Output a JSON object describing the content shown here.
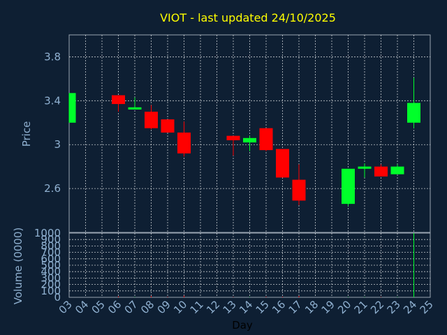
{
  "chart_data": {
    "type": "candlestick",
    "title": "VIOT - last updated 24/10/2025",
    "xlabel": "Day",
    "ylabel": "Price",
    "vol_ylabel": "Volume (0000)",
    "x_ticks": [
      "03",
      "04",
      "05",
      "06",
      "07",
      "08",
      "09",
      "10",
      "11",
      "12",
      "13",
      "14",
      "15",
      "16",
      "17",
      "18",
      "19",
      "20",
      "21",
      "22",
      "23",
      "24",
      "25"
    ],
    "price_ticks": [
      "2.6",
      "3",
      "3.4",
      "3.8"
    ],
    "price_tick_values": [
      2.6,
      3.0,
      3.4,
      3.8
    ],
    "ylim": [
      2.2,
      4.0
    ],
    "vol_ticks": [
      "1000",
      "900",
      "800",
      "700",
      "600",
      "500",
      "400",
      "300",
      "200",
      "100",
      "0"
    ],
    "vol_tick_values": [
      1000,
      900,
      800,
      700,
      600,
      500,
      400,
      300,
      200,
      100,
      0
    ],
    "vol_ylim": [
      0,
      1000
    ],
    "grid": true,
    "colors": {
      "up": "#00ff2a",
      "down": "#ff0000",
      "background": "#0e1f33",
      "title": "#ffff00",
      "label": "#8fb0d0",
      "grid": "#ffffff"
    },
    "candles": [
      {
        "day": "03",
        "open": 3.2,
        "close": 3.47,
        "high": 3.47,
        "low": 3.2,
        "volume": 0
      },
      {
        "day": "06",
        "open": 3.45,
        "close": 3.37,
        "high": 3.45,
        "low": 3.3,
        "volume": 15
      },
      {
        "day": "07",
        "open": 3.32,
        "close": 3.34,
        "high": 3.43,
        "low": 3.32,
        "volume": 5
      },
      {
        "day": "08",
        "open": 3.3,
        "close": 3.15,
        "high": 3.36,
        "low": 3.14,
        "volume": 20
      },
      {
        "day": "09",
        "open": 3.23,
        "close": 3.11,
        "high": 3.23,
        "low": 3.11,
        "volume": 8
      },
      {
        "day": "10",
        "open": 3.11,
        "close": 2.92,
        "high": 3.21,
        "low": 2.89,
        "volume": 25
      },
      {
        "day": "13",
        "open": 3.08,
        "close": 3.04,
        "high": 3.08,
        "low": 2.9,
        "volume": 5
      },
      {
        "day": "14",
        "open": 3.02,
        "close": 3.06,
        "high": 3.08,
        "low": 2.94,
        "volume": 5
      },
      {
        "day": "15",
        "open": 3.15,
        "close": 2.95,
        "high": 3.15,
        "low": 2.94,
        "volume": 10
      },
      {
        "day": "16",
        "open": 2.96,
        "close": 2.7,
        "high": 2.96,
        "low": 2.7,
        "volume": 10
      },
      {
        "day": "17",
        "open": 2.68,
        "close": 2.49,
        "high": 2.82,
        "low": 2.45,
        "volume": 20
      },
      {
        "day": "20",
        "open": 2.46,
        "close": 2.78,
        "high": 2.78,
        "low": 2.44,
        "volume": 5
      },
      {
        "day": "21",
        "open": 2.78,
        "close": 2.8,
        "high": 2.83,
        "low": 2.7,
        "volume": 5
      },
      {
        "day": "22",
        "open": 2.8,
        "close": 2.71,
        "high": 2.82,
        "low": 2.71,
        "volume": 5
      },
      {
        "day": "23",
        "open": 2.73,
        "close": 2.8,
        "high": 2.82,
        "low": 2.73,
        "volume": 5
      },
      {
        "day": "24",
        "open": 3.2,
        "close": 3.38,
        "high": 3.61,
        "low": 3.15,
        "volume": 1000
      }
    ]
  }
}
